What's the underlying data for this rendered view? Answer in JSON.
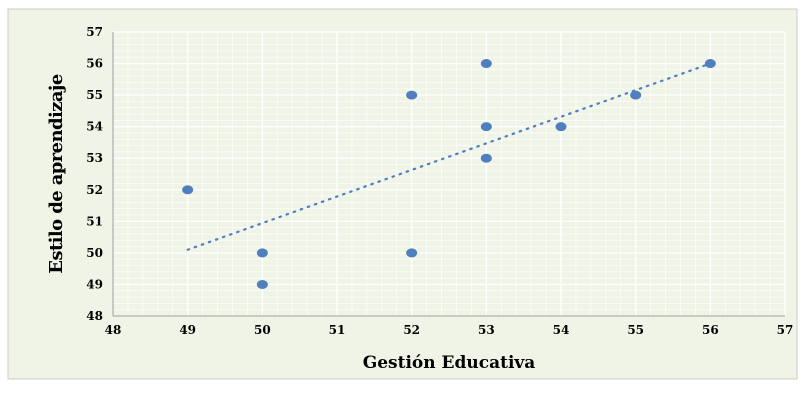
{
  "chart_data": {
    "type": "scatter",
    "xlabel": "Gestión Educativa",
    "ylabel": "Estilo de aprendizaje",
    "xlim": [
      48,
      57
    ],
    "ylim": [
      48,
      57
    ],
    "x_ticks": [
      "48",
      "49",
      "50",
      "51",
      "52",
      "53",
      "54",
      "55",
      "56",
      "57"
    ],
    "y_ticks": [
      "48",
      "49",
      "50",
      "51",
      "52",
      "53",
      "54",
      "55",
      "56",
      "57"
    ],
    "grid": true,
    "trendline": {
      "style": "dotted",
      "from": [
        49,
        50.1
      ],
      "to": [
        56,
        56
      ]
    },
    "points": [
      {
        "x": 49,
        "y": 52
      },
      {
        "x": 50,
        "y": 50
      },
      {
        "x": 50,
        "y": 49
      },
      {
        "x": 52,
        "y": 55
      },
      {
        "x": 52,
        "y": 50
      },
      {
        "x": 53,
        "y": 56
      },
      {
        "x": 53,
        "y": 54
      },
      {
        "x": 53,
        "y": 53
      },
      {
        "x": 54,
        "y": 54
      },
      {
        "x": 55,
        "y": 55
      },
      {
        "x": 56,
        "y": 56
      }
    ],
    "colors": {
      "background": "#eff4e7",
      "border": "#c9ccc4",
      "grid_minor": "#ffffff",
      "grid_major": "#ffffff",
      "point": "#4f7fbf",
      "trendline": "#4f7fbf"
    }
  }
}
